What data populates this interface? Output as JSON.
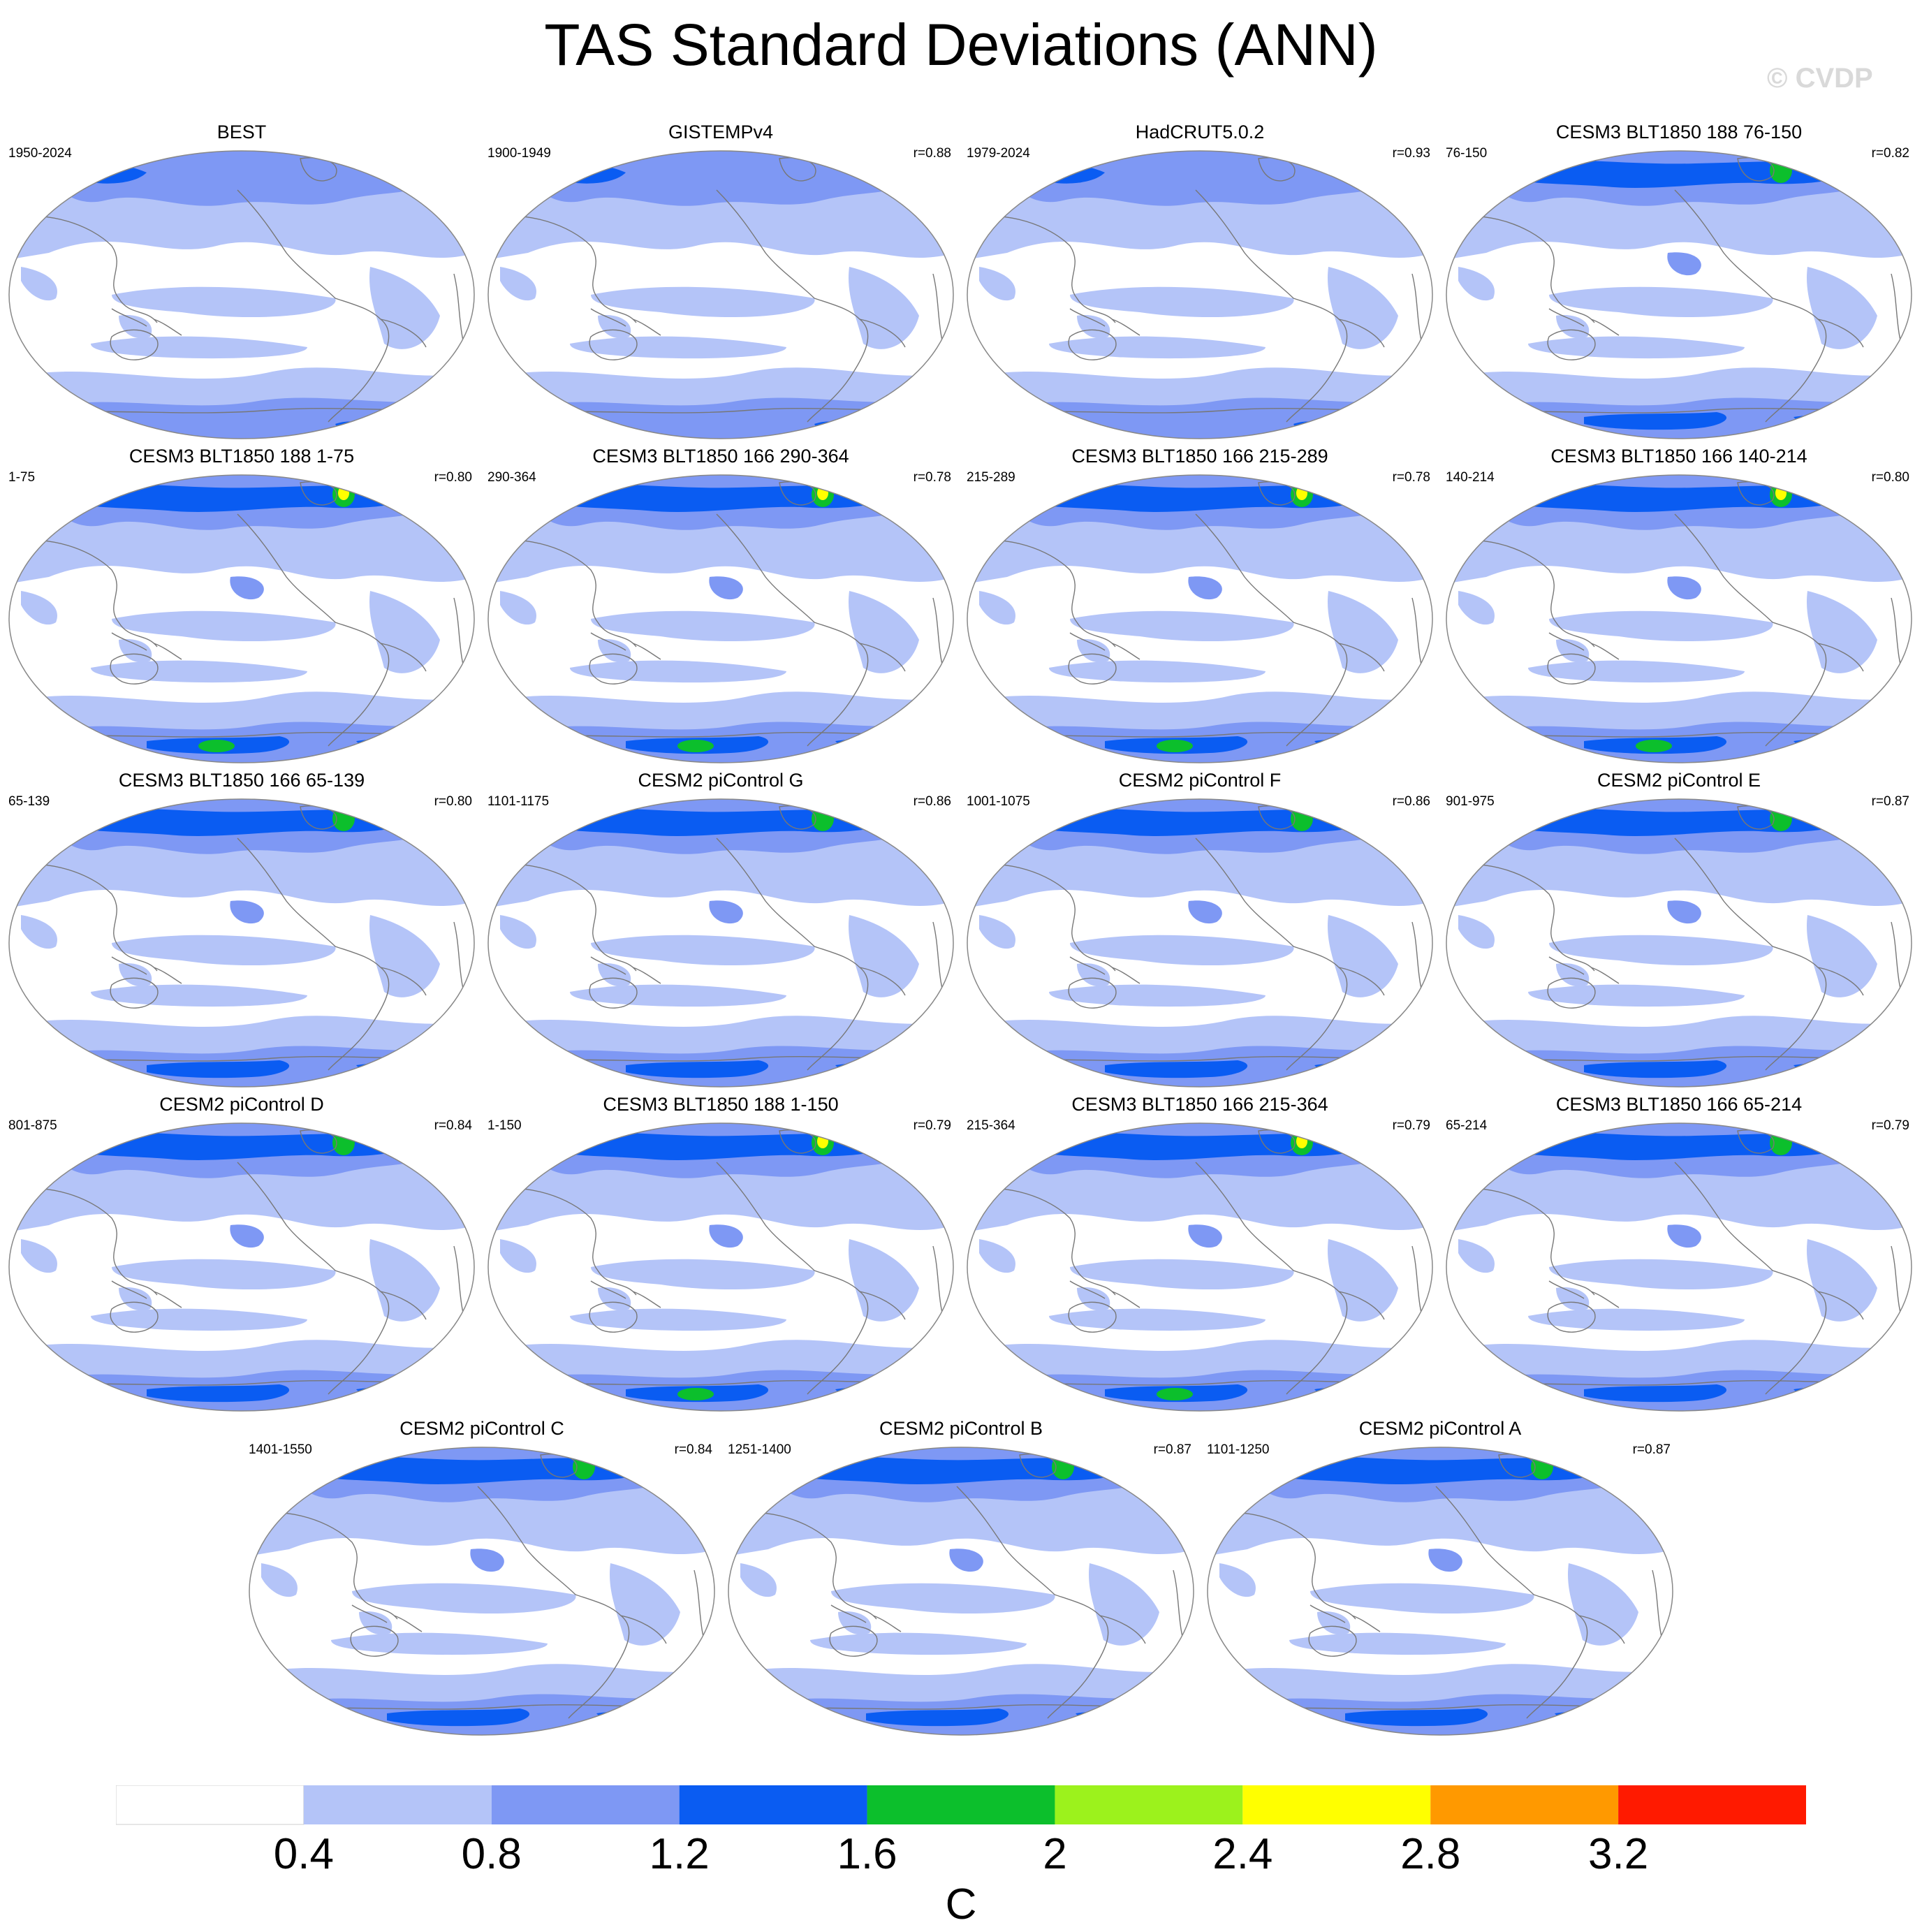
{
  "title": "TAS Standard Deviations (ANN)",
  "watermark": "© CVDP",
  "colors": {
    "level_0": "#ffffff",
    "level_1": "#b4c4f8",
    "level_2": "#7e98f4",
    "level_3": "#0a5cf2",
    "level_4": "#0cbf2c",
    "level_5": "#9cf21c",
    "level_6": "#ffff00",
    "level_7": "#ff9900",
    "level_8": "#ff1a00",
    "coastline": "#777777",
    "map_outline": "#888888"
  },
  "panels": [
    {
      "title": "BEST",
      "years": "1950-2024",
      "r": "",
      "intensity": 0
    },
    {
      "title": "GISTEMPv4",
      "years": "1900-1949",
      "r": "r=0.88",
      "intensity": 0
    },
    {
      "title": "HadCRUT5.0.2",
      "years": "1979-2024",
      "r": "r=0.93",
      "intensity": 0
    },
    {
      "title": "CESM3 BLT1850 188 76-150",
      "years": "76-150",
      "r": "r=0.82",
      "intensity": 1
    },
    {
      "title": "CESM3 BLT1850 188 1-75",
      "years": "1-75",
      "r": "r=0.80",
      "intensity": 2
    },
    {
      "title": "CESM3 BLT1850 166 290-364",
      "years": "290-364",
      "r": "r=0.78",
      "intensity": 2
    },
    {
      "title": "CESM3 BLT1850 166 215-289",
      "years": "215-289",
      "r": "r=0.78",
      "intensity": 2
    },
    {
      "title": "CESM3 BLT1850 166 140-214",
      "years": "140-214",
      "r": "r=0.80",
      "intensity": 2
    },
    {
      "title": "CESM3 BLT1850 166 65-139",
      "years": "65-139",
      "r": "r=0.80",
      "intensity": 1
    },
    {
      "title": "CESM2 piControl G",
      "years": "1101-1175",
      "r": "r=0.86",
      "intensity": 1
    },
    {
      "title": "CESM2 piControl F",
      "years": "1001-1075",
      "r": "r=0.86",
      "intensity": 1
    },
    {
      "title": "CESM2 piControl E",
      "years": "901-975",
      "r": "r=0.87",
      "intensity": 1
    },
    {
      "title": "CESM2 piControl D",
      "years": "801-875",
      "r": "r=0.84",
      "intensity": 1
    },
    {
      "title": "CESM3 BLT1850 188 1-150",
      "years": "1-150",
      "r": "r=0.79",
      "intensity": 2
    },
    {
      "title": "CESM3 BLT1850 166 215-364",
      "years": "215-364",
      "r": "r=0.79",
      "intensity": 2
    },
    {
      "title": "CESM3 BLT1850 166 65-214",
      "years": "65-214",
      "r": "r=0.79",
      "intensity": 1
    },
    {
      "title": "CESM2 piControl C",
      "years": "1401-1550",
      "r": "r=0.84",
      "intensity": 1
    },
    {
      "title": "CESM2 piControl B",
      "years": "1251-1400",
      "r": "r=0.87",
      "intensity": 1
    },
    {
      "title": "CESM2 piControl A",
      "years": "1101-1250",
      "r": "r=0.87",
      "intensity": 1
    }
  ],
  "colorbar": {
    "labels": [
      "0.4",
      "0.8",
      "1.2",
      "1.6",
      "2",
      "2.4",
      "2.8",
      "3.2"
    ],
    "unit": "C"
  }
}
